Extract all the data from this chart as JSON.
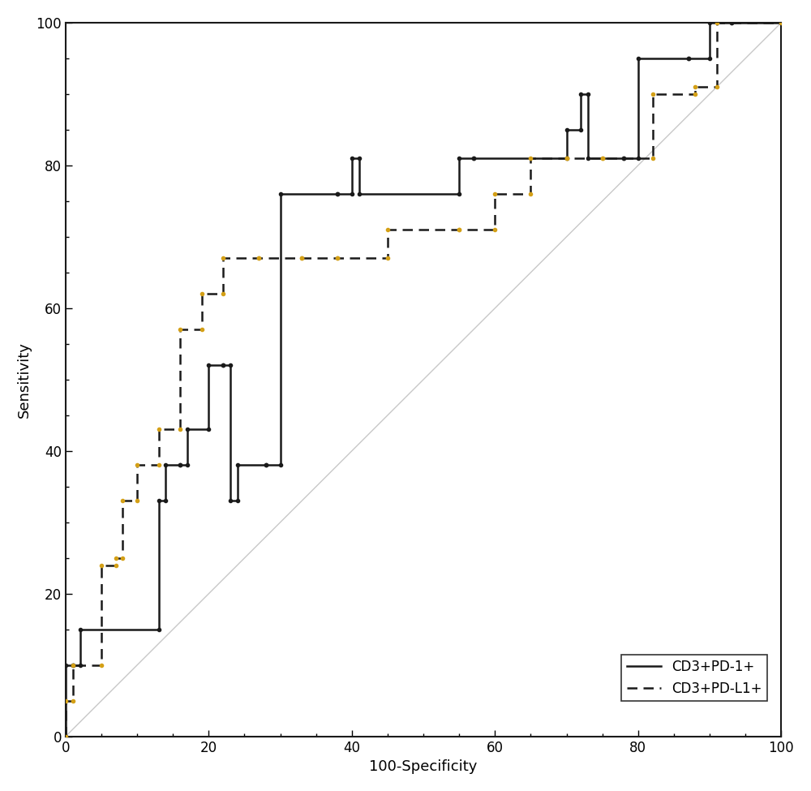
{
  "title": "",
  "xlabel": "100-Specificity",
  "ylabel": "Sensitivity",
  "xlim": [
    0,
    100
  ],
  "ylim": [
    0,
    100
  ],
  "xticks": [
    0,
    20,
    40,
    60,
    80,
    100
  ],
  "yticks": [
    0,
    20,
    40,
    60,
    80,
    100
  ],
  "reference_line_color": "#c8c8c8",
  "curve1_color": "#1a1a1a",
  "curve2_marker_color": "#d4a017",
  "background_color": "#ffffff",
  "legend_labels": [
    "CD3+PD-1+",
    "CD3+PD-L1+"
  ],
  "curve1_x": [
    0,
    0,
    1,
    1,
    2,
    2,
    13,
    13,
    14,
    14,
    16,
    16,
    17,
    17,
    20,
    20,
    22,
    22,
    23,
    23,
    24,
    24,
    28,
    28,
    30,
    30,
    38,
    38,
    40,
    40,
    41,
    41,
    55,
    55,
    57,
    57,
    70,
    70,
    72,
    72,
    73,
    73,
    78,
    78,
    80,
    80,
    87,
    87,
    90,
    90,
    93,
    93,
    100
  ],
  "curve1_y": [
    0,
    10,
    10,
    10,
    10,
    15,
    15,
    33,
    33,
    38,
    38,
    38,
    38,
    43,
    43,
    52,
    52,
    52,
    52,
    33,
    33,
    38,
    38,
    38,
    38,
    76,
    76,
    76,
    76,
    81,
    81,
    76,
    76,
    81,
    81,
    81,
    81,
    85,
    85,
    90,
    90,
    81,
    81,
    81,
    81,
    95,
    95,
    95,
    95,
    100,
    100,
    100,
    100
  ],
  "curve2_x": [
    0,
    0,
    1,
    1,
    5,
    5,
    7,
    7,
    8,
    8,
    10,
    10,
    13,
    13,
    16,
    16,
    19,
    19,
    22,
    22,
    27,
    27,
    33,
    33,
    38,
    38,
    45,
    45,
    55,
    55,
    60,
    60,
    65,
    65,
    70,
    70,
    75,
    75,
    82,
    82,
    88,
    88,
    91,
    91,
    100
  ],
  "curve2_y": [
    0,
    5,
    5,
    10,
    10,
    24,
    24,
    25,
    25,
    33,
    33,
    38,
    38,
    43,
    43,
    57,
    57,
    62,
    62,
    67,
    67,
    67,
    67,
    67,
    67,
    67,
    67,
    71,
    71,
    71,
    71,
    76,
    76,
    81,
    81,
    81,
    81,
    81,
    81,
    90,
    90,
    91,
    91,
    100,
    100
  ]
}
